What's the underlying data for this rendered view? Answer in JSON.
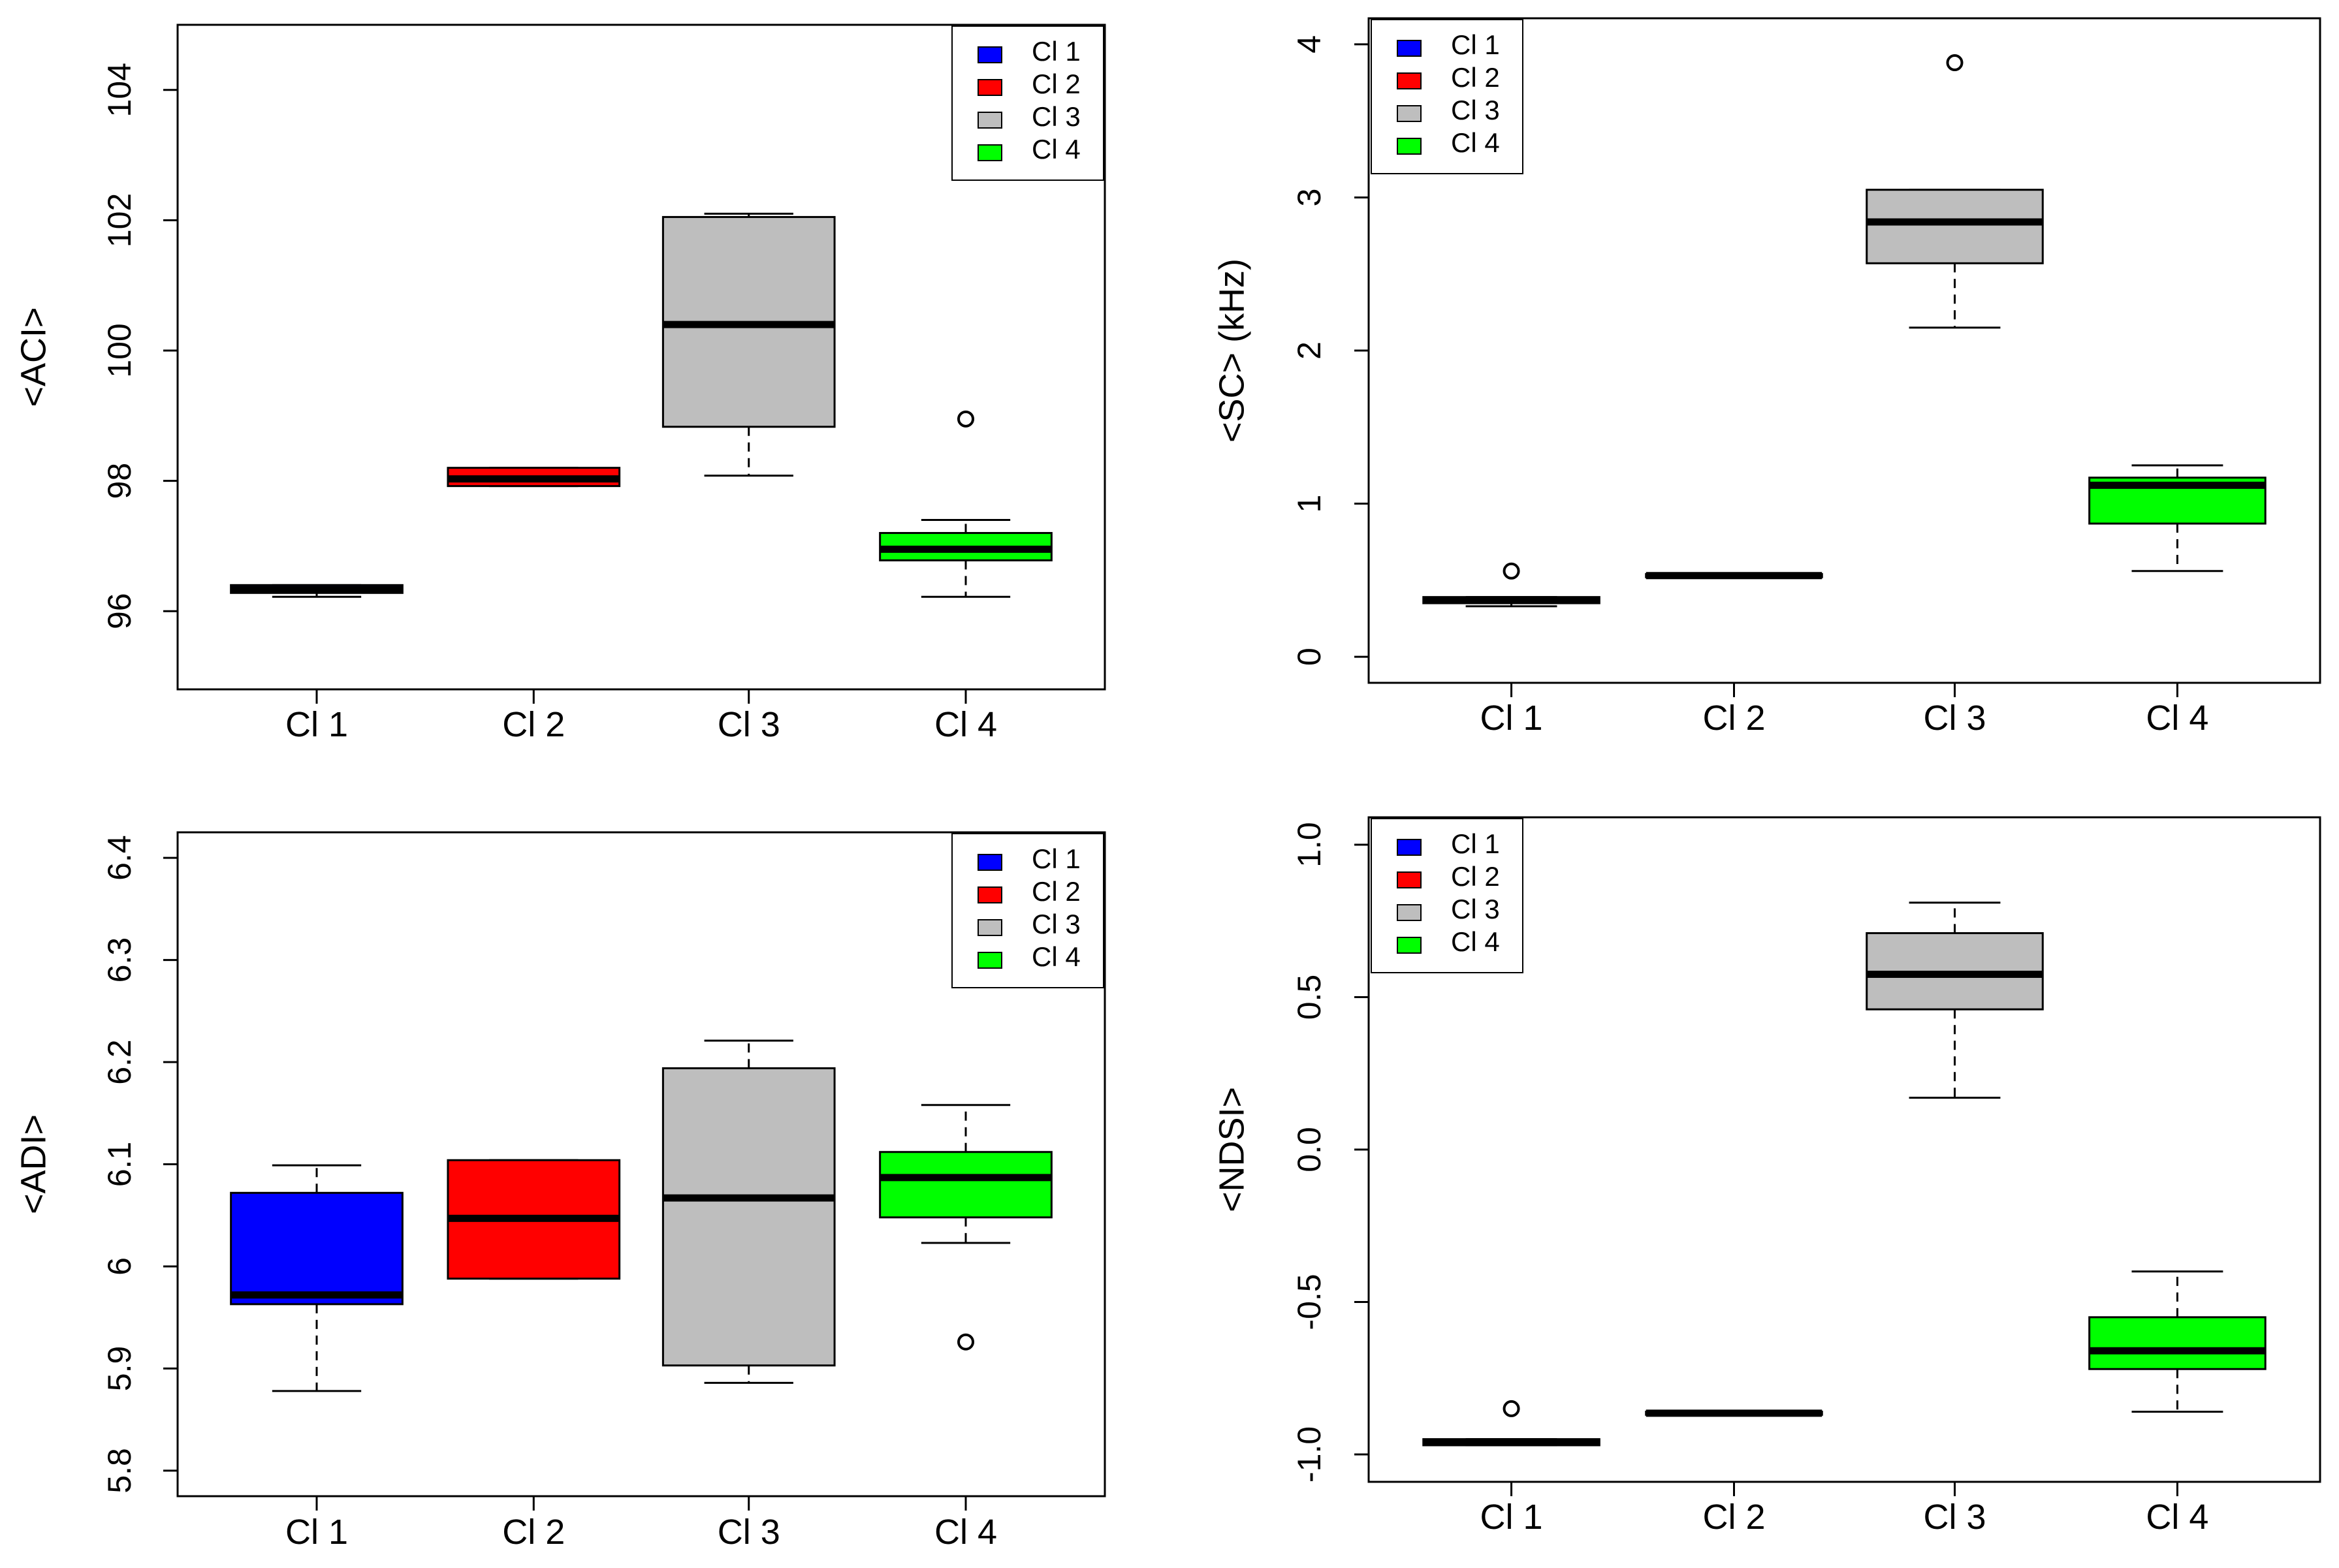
{
  "chart_data": [
    {
      "type": "boxplot",
      "id": "aci",
      "title": "",
      "xlabel": "",
      "ylabel": "<ACI>",
      "ylim": [
        94.8,
        105.0
      ],
      "yticks": [
        96,
        98,
        100,
        102,
        104
      ],
      "categories": [
        "Cl 1",
        "Cl 2",
        "Cl 3",
        "Cl 4"
      ],
      "boxes": [
        {
          "category": "Cl 1",
          "whisker_low": 96.22,
          "q1": 96.28,
          "median": 96.33,
          "q3": 96.4,
          "whisker_high": 96.4,
          "outliers": []
        },
        {
          "category": "Cl 2",
          "whisker_low": 97.92,
          "q1": 97.92,
          "median": 98.03,
          "q3": 98.2,
          "whisker_high": 98.2,
          "outliers": []
        },
        {
          "category": "Cl 3",
          "whisker_low": 98.08,
          "q1": 98.83,
          "median": 100.4,
          "q3": 102.05,
          "whisker_high": 102.1,
          "outliers": []
        },
        {
          "category": "Cl 4",
          "whisker_low": 96.22,
          "q1": 96.78,
          "median": 96.95,
          "q3": 97.2,
          "whisker_high": 97.4,
          "outliers": [
            98.95
          ]
        }
      ],
      "legend": {
        "position": "top-right",
        "entries": [
          "Cl 1",
          "Cl 2",
          "Cl 3",
          "Cl 4"
        ]
      }
    },
    {
      "type": "boxplot",
      "id": "sc",
      "title": "",
      "xlabel": "",
      "ylabel": "<SC> (kHz)",
      "ylim": [
        -0.17,
        4.17
      ],
      "yticks": [
        0,
        1,
        2,
        3,
        4
      ],
      "categories": [
        "Cl 1",
        "Cl 2",
        "Cl 3",
        "Cl 4"
      ],
      "boxes": [
        {
          "category": "Cl 1",
          "whisker_low": 0.33,
          "q1": 0.35,
          "median": 0.37,
          "q3": 0.39,
          "whisker_high": 0.39,
          "outliers": [
            0.56
          ]
        },
        {
          "category": "Cl 2",
          "whisker_low": 0.52,
          "q1": 0.52,
          "median": 0.53,
          "q3": 0.54,
          "whisker_high": 0.54,
          "outliers": []
        },
        {
          "category": "Cl 3",
          "whisker_low": 2.15,
          "q1": 2.57,
          "median": 2.84,
          "q3": 3.05,
          "whisker_high": 3.05,
          "outliers": [
            3.88
          ]
        },
        {
          "category": "Cl 4",
          "whisker_low": 0.56,
          "q1": 0.87,
          "median": 1.12,
          "q3": 1.17,
          "whisker_high": 1.25,
          "outliers": []
        }
      ],
      "legend": {
        "position": "top-left",
        "entries": [
          "Cl 1",
          "Cl 2",
          "Cl 3",
          "Cl 4"
        ]
      }
    },
    {
      "type": "boxplot",
      "id": "adi",
      "title": "",
      "xlabel": "",
      "ylabel": "<ADI>",
      "ylim": [
        5.775,
        6.425
      ],
      "yticks": [
        5.8,
        5.9,
        6.0,
        6.1,
        6.2,
        6.3,
        6.4
      ],
      "categories": [
        "Cl 1",
        "Cl 2",
        "Cl 3",
        "Cl 4"
      ],
      "boxes": [
        {
          "category": "Cl 1",
          "whisker_low": 5.878,
          "q1": 5.963,
          "median": 5.972,
          "q3": 6.072,
          "whisker_high": 6.099,
          "outliers": []
        },
        {
          "category": "Cl 2",
          "whisker_low": 5.988,
          "q1": 5.988,
          "median": 6.047,
          "q3": 6.104,
          "whisker_high": 6.104,
          "outliers": []
        },
        {
          "category": "Cl 3",
          "whisker_low": 5.886,
          "q1": 5.903,
          "median": 6.067,
          "q3": 6.194,
          "whisker_high": 6.221,
          "outliers": []
        },
        {
          "category": "Cl 4",
          "whisker_low": 6.023,
          "q1": 6.048,
          "median": 6.087,
          "q3": 6.112,
          "whisker_high": 6.158,
          "outliers": [
            5.926
          ]
        }
      ],
      "legend": {
        "position": "top-right",
        "entries": [
          "Cl 1",
          "Cl 2",
          "Cl 3",
          "Cl 4"
        ]
      }
    },
    {
      "type": "boxplot",
      "id": "ndsi",
      "title": "",
      "xlabel": "",
      "ylabel": "<NDSI>",
      "ylim": [
        -1.09,
        1.09
      ],
      "yticks": [
        -1.0,
        -0.5,
        0.0,
        0.5,
        1.0
      ],
      "ytick_labels": [
        "-1.0",
        "-0.5",
        "0.0",
        "0.5",
        "1.0"
      ],
      "categories": [
        "Cl 1",
        "Cl 2",
        "Cl 3",
        "Cl 4"
      ],
      "boxes": [
        {
          "category": "Cl 1",
          "whisker_low": -0.97,
          "q1": -0.97,
          "median": -0.96,
          "q3": -0.95,
          "whisker_high": -0.95,
          "outliers": [
            -0.85
          ]
        },
        {
          "category": "Cl 2",
          "whisker_low": -0.87,
          "q1": -0.87,
          "median": -0.865,
          "q3": -0.86,
          "whisker_high": -0.86,
          "outliers": []
        },
        {
          "category": "Cl 3",
          "whisker_low": 0.17,
          "q1": 0.46,
          "median": 0.575,
          "q3": 0.71,
          "whisker_high": 0.81,
          "outliers": []
        },
        {
          "category": "Cl 4",
          "whisker_low": -0.86,
          "q1": -0.72,
          "median": -0.66,
          "q3": -0.55,
          "whisker_high": -0.4,
          "outliers": []
        }
      ],
      "legend": {
        "position": "top-left",
        "entries": [
          "Cl 1",
          "Cl 2",
          "Cl 3",
          "Cl 4"
        ]
      }
    }
  ],
  "colors": {
    "Cl 1": "#0000ff",
    "Cl 2": "#ff0000",
    "Cl 3": "#bebebe",
    "Cl 4": "#00ff00"
  }
}
